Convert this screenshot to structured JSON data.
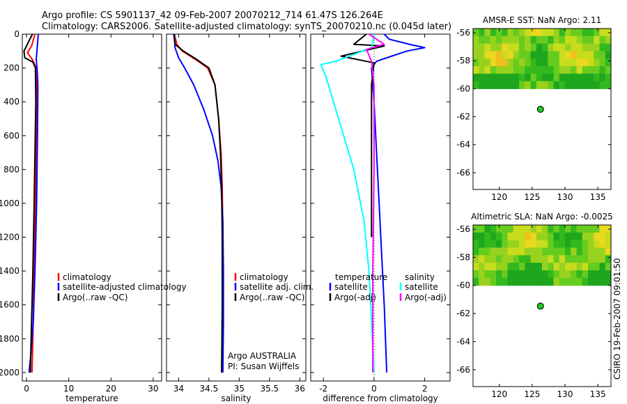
{
  "title_line1": "Argo profile: CS 5901137_42 09-Feb-2007 20070212_714 61.47S 126.264E",
  "title_line2": "Climatology: CARS2006. Satellite-adjusted climatology: synTS_20070210.nc (0.045d later)",
  "credit": "CSIRO 19-Feb-2007 09:01:50",
  "colors": {
    "climatology": "#ff0000",
    "satellite": "#0000ff",
    "argo": "#000000",
    "sat_diff": "#00ffff",
    "argo_adj": "#ff00ff"
  },
  "chart_data": [
    {
      "type": "line",
      "name": "temperature",
      "xlabel": "temperature",
      "xlim": [
        -1,
        32
      ],
      "ylim": [
        2050,
        0
      ],
      "xticks": [
        0,
        10,
        20,
        30
      ],
      "yticks": [
        0,
        200,
        400,
        600,
        800,
        1000,
        1200,
        1400,
        1600,
        1800,
        2000
      ],
      "legend": [
        "climatology",
        "satellite-adjusted climatology",
        "Argo(..raw -QC)"
      ],
      "series": [
        {
          "name": "climatology",
          "color": "#ff0000",
          "points": [
            [
              2.0,
              0
            ],
            [
              1.2,
              70
            ],
            [
              0.2,
              110
            ],
            [
              1.4,
              150
            ],
            [
              2.3,
              200
            ],
            [
              2.4,
              300
            ],
            [
              2.3,
              600
            ],
            [
              2.1,
              1000
            ],
            [
              1.8,
              1400
            ],
            [
              1.5,
              1800
            ],
            [
              1.3,
              2000
            ]
          ]
        },
        {
          "name": "satellite-adjusted climatology",
          "color": "#0000ff",
          "points": [
            [
              2.8,
              0
            ],
            [
              2.6,
              60
            ],
            [
              2.5,
              90
            ],
            [
              2.3,
              150
            ],
            [
              2.5,
              200
            ],
            [
              2.7,
              300
            ],
            [
              2.6,
              600
            ],
            [
              2.4,
              1000
            ],
            [
              2.0,
              1400
            ],
            [
              1.6,
              1700
            ],
            [
              1.0,
              1900
            ],
            [
              0.6,
              2000
            ]
          ]
        },
        {
          "name": "Argo(..raw -QC)",
          "color": "#000000",
          "points": [
            [
              1.4,
              0
            ],
            [
              0.0,
              70
            ],
            [
              -0.6,
              100
            ],
            [
              -0.4,
              140
            ],
            [
              1.5,
              165
            ],
            [
              2.1,
              200
            ],
            [
              2.2,
              400
            ],
            [
              2.0,
              700
            ],
            [
              1.8,
              1000
            ],
            [
              1.5,
              1400
            ],
            [
              1.2,
              1700
            ],
            [
              0.9,
              2000
            ]
          ]
        }
      ]
    },
    {
      "type": "line",
      "name": "salinity",
      "xlabel": "salinity",
      "xlim": [
        33.8,
        36.1
      ],
      "ylim": [
        2050,
        0
      ],
      "xticks": [
        34,
        34.5,
        35,
        35.5,
        36
      ],
      "legend": [
        "climatology",
        "satellite adj. clim.",
        "Argo(..raw -QC)"
      ],
      "annotation": [
        "Argo AUSTRALIA",
        "PI: Susan Wijffels"
      ],
      "series": [
        {
          "name": "climatology",
          "color": "#ff0000",
          "points": [
            [
              33.93,
              0
            ],
            [
              33.97,
              60
            ],
            [
              34.06,
              100
            ],
            [
              34.28,
              150
            ],
            [
              34.48,
              200
            ],
            [
              34.6,
              300
            ],
            [
              34.66,
              500
            ],
            [
              34.7,
              700
            ],
            [
              34.72,
              900
            ],
            [
              34.73,
              1200
            ],
            [
              34.73,
              1600
            ],
            [
              34.72,
              2000
            ]
          ]
        },
        {
          "name": "satellite adj. clim.",
          "color": "#0000ff",
          "points": [
            [
              33.93,
              0
            ],
            [
              33.94,
              80
            ],
            [
              34.0,
              140
            ],
            [
              34.1,
              200
            ],
            [
              34.25,
              300
            ],
            [
              34.42,
              450
            ],
            [
              34.56,
              600
            ],
            [
              34.65,
              750
            ],
            [
              34.7,
              900
            ],
            [
              34.73,
              1100
            ],
            [
              34.74,
              1400
            ],
            [
              34.74,
              1700
            ],
            [
              34.73,
              2000
            ]
          ]
        },
        {
          "name": "Argo(..raw -QC)",
          "color": "#000000",
          "points": [
            [
              33.92,
              0
            ],
            [
              33.94,
              60
            ],
            [
              34.08,
              100
            ],
            [
              34.3,
              150
            ],
            [
              34.5,
              200
            ],
            [
              34.6,
              300
            ],
            [
              34.66,
              500
            ],
            [
              34.69,
              700
            ],
            [
              34.71,
              900
            ],
            [
              34.72,
              1200
            ],
            [
              34.72,
              1600
            ],
            [
              34.71,
              2000
            ]
          ]
        }
      ]
    },
    {
      "type": "line",
      "name": "difference",
      "xlabel": "difference from climatology",
      "xlim": [
        -2.5,
        3.0
      ],
      "ylim": [
        2050,
        0
      ],
      "xticks": [
        -2,
        0,
        2
      ],
      "legend_title_left": "temperature",
      "legend_title_right": "salinity",
      "legend": [
        "satellite",
        "Argo(-adj)",
        "satellite",
        "Argo(-adj)"
      ],
      "series": [
        {
          "name": "temperature satellite",
          "color": "#0000ff",
          "points": [
            [
              0.4,
              0
            ],
            [
              0.6,
              30
            ],
            [
              1.4,
              60
            ],
            [
              2.0,
              80
            ],
            [
              1.3,
              100
            ],
            [
              0.5,
              140
            ],
            [
              0.1,
              160
            ],
            [
              -0.1,
              200
            ],
            [
              0.0,
              400
            ],
            [
              0.1,
              700
            ],
            [
              0.2,
              1000
            ],
            [
              0.3,
              1300
            ],
            [
              0.4,
              1600
            ],
            [
              0.5,
              2000
            ]
          ]
        },
        {
          "name": "temperature Argo(-adj)",
          "color": "#000000",
          "points": [
            [
              -0.3,
              0
            ],
            [
              -0.8,
              60
            ],
            [
              0.4,
              70
            ],
            [
              -1.3,
              130
            ],
            [
              0.0,
              170
            ],
            [
              -0.1,
              300
            ],
            [
              -0.1,
              600
            ],
            [
              -0.1,
              1000
            ],
            [
              -0.1,
              1200
            ]
          ]
        },
        {
          "name": "salinity satellite",
          "color": "#00ffff",
          "points": [
            [
              0.0,
              0
            ],
            [
              -0.1,
              80
            ],
            [
              -1.5,
              160
            ],
            [
              -2.1,
              180
            ],
            [
              -1.9,
              250
            ],
            [
              -1.6,
              400
            ],
            [
              -1.2,
              600
            ],
            [
              -0.8,
              800
            ],
            [
              -0.4,
              1100
            ],
            [
              -0.2,
              1400
            ],
            [
              -0.1,
              1700
            ],
            [
              0.0,
              2000
            ]
          ]
        },
        {
          "name": "salinity Argo(-adj)",
          "color": "#ff00ff",
          "points": [
            [
              -0.2,
              0
            ],
            [
              0.4,
              60
            ],
            [
              -0.3,
              90
            ],
            [
              -0.1,
              160
            ],
            [
              0.0,
              300
            ],
            [
              0.0,
              800
            ],
            [
              -0.05,
              1400
            ],
            [
              -0.05,
              2000
            ]
          ]
        }
      ]
    },
    {
      "type": "heatmap",
      "name": "sst-map",
      "title": "AMSR-E SST: NaN Argo: 2.11",
      "xlim": [
        116,
        137
      ],
      "ylim": [
        -67.2,
        -55.7
      ],
      "xticks": [
        120,
        125,
        130,
        135
      ],
      "yticks": [
        -56,
        -58,
        -60,
        -62,
        -64,
        -66
      ],
      "data_lat_range": [
        -60.0,
        -55.7
      ],
      "float_position": {
        "lon": 126.264,
        "lat": -61.47
      }
    },
    {
      "type": "heatmap",
      "name": "sla-map",
      "title": "Altimetric SLA: NaN Argo: -0.0025",
      "xlim": [
        116,
        137
      ],
      "ylim": [
        -67.2,
        -55.7
      ],
      "xticks": [
        120,
        125,
        130,
        135
      ],
      "yticks": [
        -56,
        -58,
        -60,
        -62,
        -64,
        -66
      ],
      "data_lat_range": [
        -60.0,
        -55.7
      ],
      "float_position": {
        "lon": 126.264,
        "lat": -61.47
      }
    }
  ]
}
